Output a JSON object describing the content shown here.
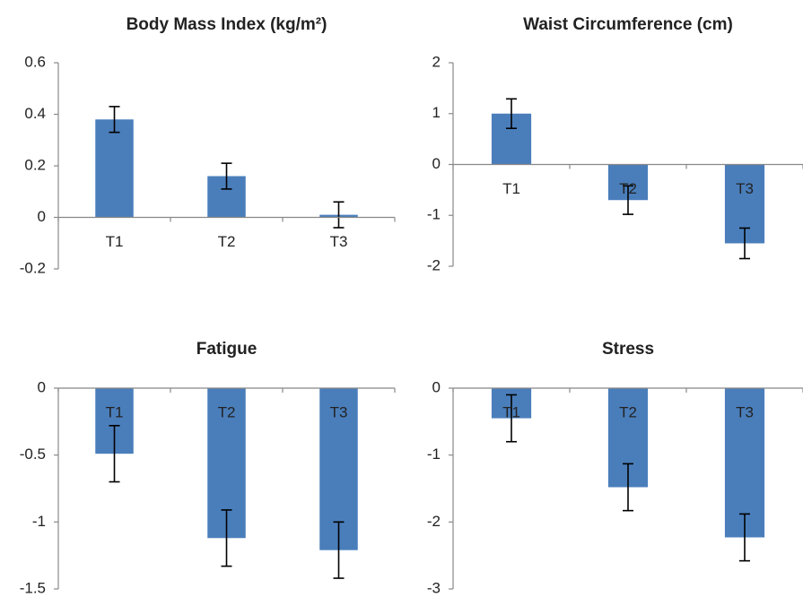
{
  "chart_data": [
    {
      "type": "bar",
      "title": "Body Mass Index (kg/m²)",
      "categories": [
        "T1",
        "T2",
        "T3"
      ],
      "values": [
        0.38,
        0.16,
        0.01
      ],
      "errors": [
        0.05,
        0.05,
        0.05
      ],
      "color": "#4a7ebb",
      "ylim": [
        -0.2,
        0.6
      ],
      "yticks": [
        -0.2,
        0,
        0.2,
        0.4,
        0.6
      ]
    },
    {
      "type": "bar",
      "title": "Waist Circumference (cm)",
      "categories": [
        "T1",
        "T2",
        "T3"
      ],
      "values": [
        1.0,
        -0.7,
        -1.55
      ],
      "errors": [
        0.29,
        0.28,
        0.3
      ],
      "color": "#4a7ebb",
      "ylim": [
        -2,
        2
      ],
      "yticks": [
        -2,
        -1,
        0,
        1,
        2
      ]
    },
    {
      "type": "bar",
      "title": "Fatigue",
      "categories": [
        "T1",
        "T2",
        "T3"
      ],
      "values": [
        -0.49,
        -1.12,
        -1.21
      ],
      "errors": [
        0.21,
        0.21,
        0.21
      ],
      "color": "#4a7ebb",
      "ylim": [
        -1.5,
        0
      ],
      "yticks": [
        -1.5,
        -1,
        -0.5,
        0
      ]
    },
    {
      "type": "bar",
      "title": "Stress",
      "categories": [
        "T1",
        "T2",
        "T3"
      ],
      "values": [
        -0.45,
        -1.48,
        -2.23
      ],
      "errors": [
        0.35,
        0.35,
        0.35
      ],
      "color": "#4a7ebb",
      "ylim": [
        -3,
        0
      ],
      "yticks": [
        -3,
        -2,
        -1,
        0
      ]
    }
  ]
}
